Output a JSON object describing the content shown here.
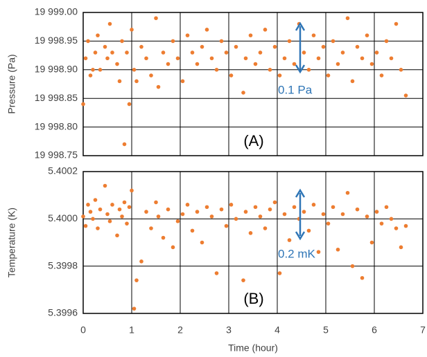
{
  "chart_data": [
    {
      "type": "scatter",
      "ylabel": "Pressure (Pa)",
      "panel_label": "(A)",
      "annotation": "0.1 Pa",
      "color": "#ed7d31",
      "grid": true,
      "xlim": [
        0,
        7
      ],
      "xticks": [
        0,
        1,
        2,
        3,
        4,
        5,
        6,
        7
      ],
      "ylim": [
        19998.75,
        19999.0
      ],
      "yticks": [
        {
          "value": 19998.75,
          "label": "19 998.75"
        },
        {
          "value": 19998.8,
          "label": "19 998.80"
        },
        {
          "value": 19998.85,
          "label": "19 998.85"
        },
        {
          "value": 19998.9,
          "label": "19 998.90"
        },
        {
          "value": 19998.95,
          "label": "19 998.95"
        },
        {
          "value": 19999.0,
          "label": "19 999.00"
        }
      ],
      "x": [
        0,
        0.05,
        0.1,
        0.15,
        0.2,
        0.25,
        0.3,
        0.35,
        0.45,
        0.5,
        0.55,
        0.6,
        0.7,
        0.75,
        0.8,
        0.85,
        0.9,
        0.95,
        1.0,
        1.05,
        1.1,
        1.2,
        1.3,
        1.4,
        1.5,
        1.55,
        1.65,
        1.75,
        1.85,
        1.95,
        2.05,
        2.15,
        2.25,
        2.35,
        2.45,
        2.55,
        2.65,
        2.75,
        2.85,
        2.95,
        3.05,
        3.15,
        3.3,
        3.35,
        3.45,
        3.55,
        3.65,
        3.75,
        3.85,
        3.95,
        4.05,
        4.15,
        4.25,
        4.35,
        4.45,
        4.55,
        4.65,
        4.75,
        4.85,
        4.95,
        5.05,
        5.15,
        5.25,
        5.35,
        5.45,
        5.55,
        5.65,
        5.75,
        5.85,
        5.95,
        6.05,
        6.15,
        6.25,
        6.35,
        6.45,
        6.55,
        6.65
      ],
      "values": [
        19998.84,
        19998.92,
        19998.95,
        19998.89,
        19998.9,
        19998.93,
        19998.96,
        19998.9,
        19998.94,
        19998.92,
        19998.98,
        19998.93,
        19998.91,
        19998.88,
        19998.95,
        19998.77,
        19998.93,
        19998.84,
        19998.97,
        19998.9,
        19998.88,
        19998.94,
        19998.92,
        19998.89,
        19998.99,
        19998.87,
        19998.93,
        19998.91,
        19998.95,
        19998.92,
        19998.88,
        19998.96,
        19998.93,
        19998.91,
        19998.94,
        19998.97,
        19998.92,
        19998.9,
        19998.95,
        19998.93,
        19998.89,
        19998.94,
        19998.86,
        19998.92,
        19998.96,
        19998.91,
        19998.93,
        19998.97,
        19998.9,
        19998.94,
        19998.89,
        19998.92,
        19998.95,
        19998.91,
        19998.98,
        19998.93,
        19998.9,
        19998.96,
        19998.92,
        19998.94,
        19998.89,
        19998.95,
        19998.91,
        19998.93,
        19998.99,
        19998.88,
        19998.94,
        19998.92,
        19998.96,
        19998.91,
        19998.93,
        19998.89,
        19998.95,
        19998.92,
        19998.98,
        19998.9,
        19998.855
      ]
    },
    {
      "type": "scatter",
      "ylabel": "Temperature (K)",
      "xlabel": "Time (hour)",
      "panel_label": "(B)",
      "annotation": "0.2 mK",
      "color": "#ed7d31",
      "grid": true,
      "xlim": [
        0,
        7
      ],
      "xticks": [
        0,
        1,
        2,
        3,
        4,
        5,
        6,
        7
      ],
      "ylim": [
        5.3996,
        5.4002
      ],
      "yticks": [
        5.3996,
        5.3998,
        {
          "value": 5.4,
          "label": "5.4000"
        },
        5.4002
      ],
      "x": [
        0,
        0.05,
        0.1,
        0.15,
        0.2,
        0.25,
        0.3,
        0.35,
        0.45,
        0.5,
        0.55,
        0.6,
        0.7,
        0.75,
        0.8,
        0.85,
        0.9,
        0.95,
        1.0,
        1.05,
        1.1,
        1.2,
        1.3,
        1.4,
        1.5,
        1.55,
        1.65,
        1.75,
        1.85,
        1.95,
        2.05,
        2.15,
        2.25,
        2.35,
        2.45,
        2.55,
        2.65,
        2.75,
        2.85,
        2.95,
        3.05,
        3.15,
        3.3,
        3.35,
        3.45,
        3.55,
        3.65,
        3.75,
        3.85,
        3.95,
        4.05,
        4.15,
        4.25,
        4.35,
        4.45,
        4.55,
        4.65,
        4.75,
        4.85,
        4.95,
        5.05,
        5.15,
        5.25,
        5.35,
        5.45,
        5.55,
        5.65,
        5.75,
        5.85,
        5.95,
        6.05,
        6.15,
        6.25,
        6.35,
        6.45,
        6.55,
        6.65
      ],
      "values": [
        5.40001,
        5.39997,
        5.40006,
        5.40003,
        5.4,
        5.40008,
        5.39996,
        5.40004,
        5.40014,
        5.40002,
        5.39999,
        5.40006,
        5.39993,
        5.40004,
        5.40001,
        5.40007,
        5.39998,
        5.40005,
        5.40012,
        5.39962,
        5.39974,
        5.39982,
        5.40003,
        5.39996,
        5.40007,
        5.40001,
        5.39992,
        5.40004,
        5.39988,
        5.39999,
        5.40002,
        5.40006,
        5.39995,
        5.40003,
        5.3999,
        5.40005,
        5.40001,
        5.39977,
        5.40004,
        5.39997,
        5.40006,
        5.4,
        5.39974,
        5.40003,
        5.39994,
        5.40005,
        5.40001,
        5.39996,
        5.40004,
        5.40007,
        5.39977,
        5.40002,
        5.39991,
        5.40005,
        5.4,
        5.40003,
        5.39995,
        5.40006,
        5.39986,
        5.40002,
        5.39998,
        5.40005,
        5.39987,
        5.40002,
        5.40011,
        5.3998,
        5.40004,
        5.39975,
        5.40001,
        5.3999,
        5.40003,
        5.39998,
        5.40005,
        5.4,
        5.39996,
        5.39988,
        5.39997
      ]
    }
  ]
}
